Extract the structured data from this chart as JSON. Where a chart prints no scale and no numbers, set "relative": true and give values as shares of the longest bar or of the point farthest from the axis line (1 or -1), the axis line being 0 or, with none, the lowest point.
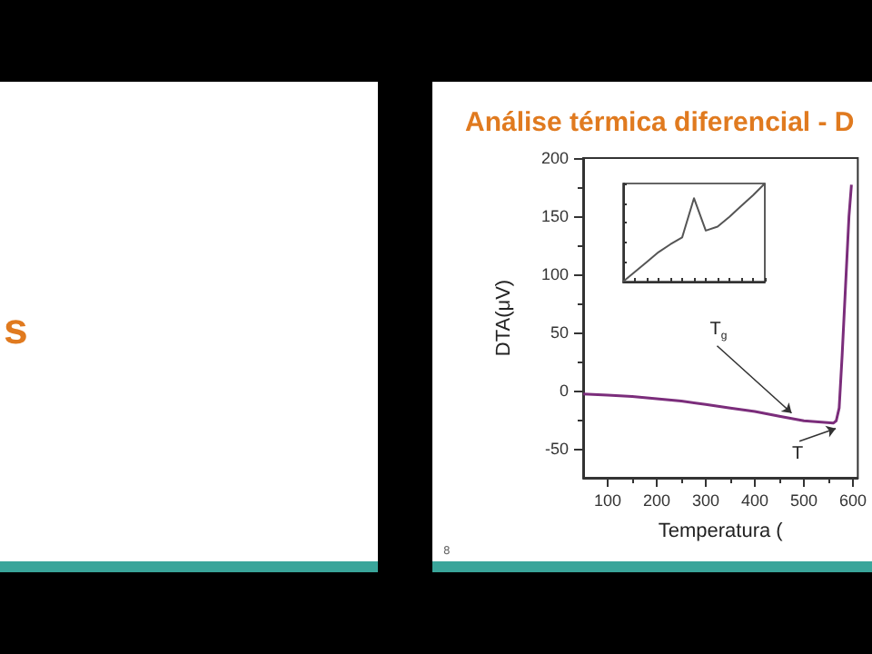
{
  "chart_data": [
    {
      "type": "line",
      "title": "Análise térmica diferencial - D",
      "xlabel": "Temperatura (",
      "ylabel": "DTA(μV)",
      "x": [
        50,
        100,
        150,
        200,
        250,
        300,
        350,
        400,
        450,
        475,
        500,
        530,
        560,
        566,
        572,
        578,
        585,
        592,
        597
      ],
      "series": [
        {
          "color": "#7b2d7b",
          "values": [
            -3,
            -4,
            -5,
            -7,
            -9,
            -12,
            -15,
            -18,
            -22,
            -24,
            -26,
            -27,
            -28,
            -26,
            -15,
            30,
            90,
            150,
            177
          ]
        }
      ],
      "xlim": [
        50,
        610
      ],
      "xticks": [
        100,
        200,
        300,
        400,
        500,
        600
      ],
      "ylim": [
        -75,
        200
      ],
      "yticks": [
        -50,
        0,
        50,
        100,
        150,
        200
      ],
      "grid": false,
      "marker": "none",
      "line_style": "solid",
      "annotations": [
        {
          "text": "T$_{g}$",
          "x": 475,
          "y": -24
        },
        {
          "text": "T",
          "x": 565,
          "y": -28
        },
        "s",
        "8"
      ]
    },
    {
      "type": "line",
      "relative": true,
      "categories": [
        null,
        null,
        null,
        null,
        null,
        null,
        null,
        null,
        null,
        null,
        null,
        null,
        null
      ],
      "series": [
        {
          "color": "#555555",
          "values": [
            0,
            0.1,
            0.2,
            0.3,
            0.38,
            0.45,
            0.85,
            0.52,
            0.56,
            0.66,
            0.77,
            0.88,
            1
          ]
        }
      ],
      "marker": "none",
      "line_style": "solid"
    }
  ]
}
